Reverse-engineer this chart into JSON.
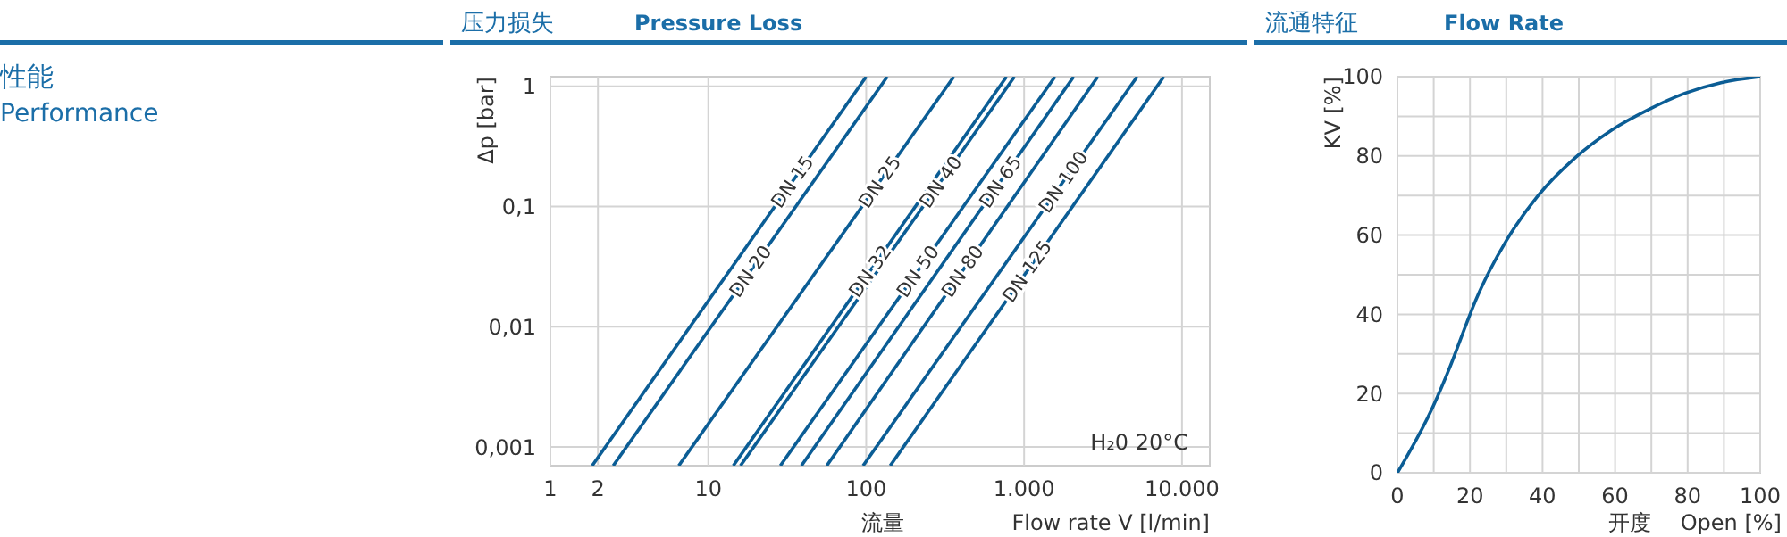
{
  "chart_data": [
    {
      "type": "other",
      "title": "性能",
      "subtitle": "Performance"
    },
    {
      "type": "line",
      "title": "压力损失",
      "subtitle": "Pressure Loss",
      "xlabel": "流量",
      "ylabel": "Δp [bar]",
      "annotations": [
        "H₂0 20°C",
        "Flow rate  V [l/min]"
      ],
      "log": "xy",
      "grid": true,
      "marker": "none",
      "line_style": "solid",
      "xlim": [
        1,
        15000
      ],
      "ylim": [
        0.0007,
        1.2
      ],
      "xticks": [
        1,
        2,
        10,
        100,
        {
          "value": 1000,
          "label": "1.000"
        },
        {
          "value": 10000,
          "label": "10.000"
        }
      ],
      "yticks": [
        {
          "value": 0.001,
          "label": "0,001"
        },
        {
          "value": 0.01,
          "label": "0,01"
        },
        {
          "value": 0.1,
          "label": "0,1"
        },
        1
      ],
      "series": [
        {
          "name": "DN 15",
          "color": "#0b5d95",
          "x": [
            1.84,
            100
          ],
          "values": [
            0.0007,
            1.2
          ]
        },
        {
          "name": "DN 20",
          "color": "#0b5d95",
          "x": [
            2.5,
            136
          ],
          "values": [
            0.0007,
            1.2
          ]
        },
        {
          "name": "DN 25",
          "color": "#0b5d95",
          "x": [
            6.5,
            359
          ],
          "values": [
            0.0007,
            1.2
          ]
        },
        {
          "name": "DN 32",
          "color": "#0b5d95",
          "x": [
            14.4,
            774
          ],
          "values": [
            0.0007,
            1.2
          ]
        },
        {
          "name": "DN 40",
          "color": "#0b5d95",
          "x": [
            16,
            869
          ],
          "values": [
            0.0007,
            1.2
          ]
        },
        {
          "name": "DN 50",
          "color": "#0b5d95",
          "x": [
            28.6,
            1570
          ],
          "values": [
            0.0007,
            1.2
          ]
        },
        {
          "name": "DN 65",
          "color": "#0b5d95",
          "x": [
            38.9,
            2060
          ],
          "values": [
            0.0007,
            1.2
          ]
        },
        {
          "name": "DN 80",
          "color": "#0b5d95",
          "x": [
            56.3,
            2930
          ],
          "values": [
            0.0007,
            1.2
          ]
        },
        {
          "name": "DN 100",
          "color": "#0b5d95",
          "x": [
            95.6,
            5200
          ],
          "values": [
            0.0007,
            1.2
          ]
        },
        {
          "name": "DN 125",
          "color": "#0b5d95",
          "x": [
            142,
            7670
          ],
          "values": [
            0.0007,
            1.2
          ]
        }
      ]
    },
    {
      "type": "line",
      "title": "流通特征",
      "subtitle": "Flow Rate",
      "xlabel": "开度",
      "ylabel": "KV [%]",
      "annotations": [
        "Open [%]"
      ],
      "grid": true,
      "marker": "none",
      "line_style": "solid",
      "xlim": [
        0,
        100
      ],
      "ylim": [
        0,
        100
      ],
      "xticks": [
        0,
        {
          "value": 10,
          "label": null
        },
        20,
        {
          "value": 30,
          "label": null
        },
        40,
        {
          "value": 50,
          "label": null
        },
        60,
        {
          "value": 70,
          "label": null
        },
        80,
        {
          "value": 90,
          "label": null
        },
        100
      ],
      "yticks": [
        0,
        {
          "value": 10,
          "label": null
        },
        20,
        {
          "value": 30,
          "label": null
        },
        40,
        {
          "value": 50,
          "label": null
        },
        60,
        {
          "value": 70,
          "label": null
        },
        80,
        {
          "value": 90,
          "label": null
        },
        100
      ],
      "series": [
        {
          "color": "#0b5d95",
          "x": [
            0,
            9.7,
            14.6,
            19,
            21.6,
            25.4,
            30,
            38.8,
            49.2,
            59,
            69.2,
            79.2,
            89.2,
            100
          ],
          "values": [
            0,
            16.5,
            27,
            37.6,
            43.6,
            51,
            58.6,
            70,
            79.7,
            86.5,
            91.7,
            95.8,
            98.5,
            100
          ]
        }
      ]
    }
  ]
}
